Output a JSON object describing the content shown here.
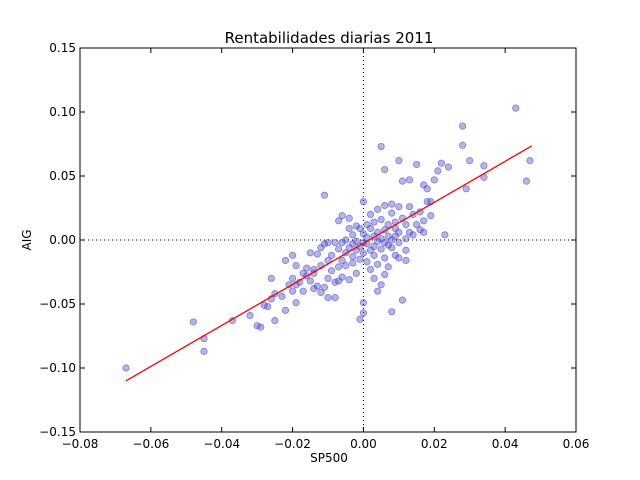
{
  "chart_data": {
    "type": "scatter",
    "title": "Rentabilidades diarias 2011",
    "xlabel": "SP500",
    "ylabel": "AIG",
    "xlim": [
      -0.08,
      0.06
    ],
    "ylim": [
      -0.15,
      0.15
    ],
    "xticks": [
      -0.08,
      -0.06,
      -0.04,
      -0.02,
      0.0,
      0.02,
      0.04,
      0.06
    ],
    "yticks": [
      -0.15,
      -0.1,
      -0.05,
      0.0,
      0.05,
      0.1,
      0.15
    ],
    "xtick_labels": [
      "−0.08",
      "−0.06",
      "−0.04",
      "−0.02",
      "0.00",
      "0.02",
      "0.04",
      "0.06"
    ],
    "ytick_labels": [
      "−0.15",
      "−0.10",
      "−0.05",
      "0.00",
      "0.05",
      "0.10",
      "0.15"
    ],
    "grid": false,
    "reference_lines": {
      "x": 0.0,
      "y": 0.0,
      "style": "dotted"
    },
    "point_color": "#4444cc",
    "fit_line_color": "#ff0000",
    "fit_line": {
      "x": [
        -0.067,
        0.0475
      ],
      "y": [
        -0.11,
        0.0735
      ]
    },
    "points": [
      [
        -0.067,
        -0.1
      ],
      [
        -0.048,
        -0.064
      ],
      [
        -0.045,
        -0.077
      ],
      [
        -0.045,
        -0.087
      ],
      [
        -0.037,
        -0.063
      ],
      [
        -0.032,
        -0.059
      ],
      [
        -0.03,
        -0.067
      ],
      [
        -0.029,
        -0.068
      ],
      [
        -0.028,
        -0.051
      ],
      [
        -0.027,
        -0.052
      ],
      [
        -0.026,
        -0.046
      ],
      [
        -0.026,
        -0.03
      ],
      [
        -0.025,
        -0.042
      ],
      [
        -0.025,
        -0.063
      ],
      [
        -0.023,
        -0.044
      ],
      [
        -0.022,
        -0.016
      ],
      [
        -0.022,
        -0.055
      ],
      [
        -0.021,
        -0.035
      ],
      [
        -0.02,
        -0.03
      ],
      [
        -0.02,
        -0.012
      ],
      [
        -0.02,
        -0.04
      ],
      [
        -0.019,
        -0.049
      ],
      [
        -0.019,
        -0.02
      ],
      [
        -0.019,
        -0.035
      ],
      [
        -0.018,
        -0.033
      ],
      [
        -0.017,
        -0.026
      ],
      [
        -0.017,
        -0.04
      ],
      [
        -0.016,
        -0.022
      ],
      [
        -0.016,
        -0.028
      ],
      [
        -0.015,
        -0.032
      ],
      [
        -0.015,
        -0.01
      ],
      [
        -0.014,
        -0.023
      ],
      [
        -0.014,
        -0.038
      ],
      [
        -0.014,
        -0.026
      ],
      [
        -0.013,
        -0.036
      ],
      [
        -0.013,
        -0.011
      ],
      [
        -0.012,
        -0.041
      ],
      [
        -0.012,
        -0.02
      ],
      [
        -0.012,
        -0.006
      ],
      [
        -0.011,
        -0.037
      ],
      [
        -0.011,
        -0.003
      ],
      [
        -0.011,
        0.035
      ],
      [
        -0.01,
        -0.045
      ],
      [
        -0.01,
        -0.03
      ],
      [
        -0.01,
        -0.016
      ],
      [
        -0.01,
        -0.002
      ],
      [
        -0.009,
        -0.024
      ],
      [
        -0.009,
        -0.012
      ],
      [
        -0.008,
        -0.033
      ],
      [
        -0.008,
        -0.045
      ],
      [
        -0.008,
        -0.002
      ],
      [
        -0.007,
        -0.032
      ],
      [
        -0.007,
        -0.021
      ],
      [
        -0.007,
        -0.007
      ],
      [
        -0.007,
        0.015
      ],
      [
        -0.006,
        -0.016
      ],
      [
        -0.006,
        -0.002
      ],
      [
        -0.006,
        0.019
      ],
      [
        -0.006,
        -0.029
      ],
      [
        -0.005,
        -0.01
      ],
      [
        -0.005,
        0.0
      ],
      [
        -0.005,
        -0.02
      ],
      [
        -0.004,
        0.017
      ],
      [
        -0.004,
        -0.006
      ],
      [
        -0.004,
        -0.031
      ],
      [
        -0.004,
        0.009
      ],
      [
        -0.003,
        -0.013
      ],
      [
        -0.003,
        -0.003
      ],
      [
        -0.003,
        0.004
      ],
      [
        -0.003,
        -0.018
      ],
      [
        -0.002,
        -0.008
      ],
      [
        -0.002,
        -0.026
      ],
      [
        -0.002,
        0.011
      ],
      [
        -0.002,
        -0.001
      ],
      [
        -0.001,
        -0.005
      ],
      [
        -0.001,
        -0.015
      ],
      [
        -0.001,
        -0.062
      ],
      [
        -0.001,
        0.009
      ],
      [
        0.0,
        -0.01
      ],
      [
        0.0,
        0.005
      ],
      [
        0.0,
        -0.002
      ],
      [
        0.0,
        -0.049
      ],
      [
        0.0,
        0.03
      ],
      [
        0.0,
        -0.057
      ],
      [
        0.001,
        -0.003
      ],
      [
        0.001,
        -0.017
      ],
      [
        0.001,
        0.012
      ],
      [
        0.001,
        0.002
      ],
      [
        0.002,
        -0.008
      ],
      [
        0.002,
        -0.023
      ],
      [
        0.002,
        0.009
      ],
      [
        0.002,
        0.02
      ],
      [
        0.003,
        -0.005
      ],
      [
        0.003,
        0.003
      ],
      [
        0.003,
        -0.012
      ],
      [
        0.003,
        0.014
      ],
      [
        0.003,
        -0.03
      ],
      [
        0.004,
        -0.001
      ],
      [
        0.004,
        0.006
      ],
      [
        0.004,
        -0.019
      ],
      [
        0.004,
        0.024
      ],
      [
        0.004,
        -0.04
      ],
      [
        0.005,
        0.001
      ],
      [
        0.005,
        -0.007
      ],
      [
        0.005,
        0.016
      ],
      [
        0.005,
        0.073
      ],
      [
        0.005,
        -0.035
      ],
      [
        0.006,
        -0.002
      ],
      [
        0.006,
        0.008
      ],
      [
        0.006,
        -0.014
      ],
      [
        0.006,
        0.027
      ],
      [
        0.006,
        0.055
      ],
      [
        0.006,
        -0.027
      ],
      [
        0.007,
        0.003
      ],
      [
        0.007,
        -0.004
      ],
      [
        0.007,
        0.012
      ],
      [
        0.007,
        -0.021
      ],
      [
        0.008,
        0.021
      ],
      [
        0.008,
        -0.006
      ],
      [
        0.008,
        0.0
      ],
      [
        0.008,
        -0.056
      ],
      [
        0.008,
        0.028
      ],
      [
        0.009,
        0.009
      ],
      [
        0.009,
        -0.012
      ],
      [
        0.009,
        0.003
      ],
      [
        0.009,
        0.014
      ],
      [
        0.01,
        -0.002
      ],
      [
        0.01,
        0.006
      ],
      [
        0.01,
        0.062
      ],
      [
        0.01,
        -0.014
      ],
      [
        0.01,
        0.026
      ],
      [
        0.011,
        0.046
      ],
      [
        0.011,
        -0.047
      ],
      [
        0.011,
        0.017
      ],
      [
        0.012,
        0.001
      ],
      [
        0.012,
        -0.008
      ],
      [
        0.012,
        0.012
      ],
      [
        0.012,
        -0.016
      ],
      [
        0.013,
        0.026
      ],
      [
        0.013,
        0.006
      ],
      [
        0.013,
        0.047
      ],
      [
        0.014,
        0.02
      ],
      [
        0.014,
        0.004
      ],
      [
        0.015,
        0.012
      ],
      [
        0.015,
        0.059
      ],
      [
        0.016,
        0.022
      ],
      [
        0.016,
        0.008
      ],
      [
        0.017,
        0.043
      ],
      [
        0.017,
        0.015
      ],
      [
        0.017,
        0.006
      ],
      [
        0.018,
        0.03
      ],
      [
        0.018,
        0.04
      ],
      [
        0.019,
        0.019
      ],
      [
        0.019,
        0.03
      ],
      [
        0.02,
        0.047
      ],
      [
        0.021,
        0.054
      ],
      [
        0.022,
        0.06
      ],
      [
        0.023,
        0.004
      ],
      [
        0.024,
        0.057
      ],
      [
        0.028,
        0.074
      ],
      [
        0.028,
        0.089
      ],
      [
        0.029,
        0.04
      ],
      [
        0.03,
        0.062
      ],
      [
        0.034,
        0.058
      ],
      [
        0.034,
        0.049
      ],
      [
        0.043,
        0.103
      ],
      [
        0.046,
        0.046
      ],
      [
        0.047,
        0.062
      ]
    ]
  }
}
